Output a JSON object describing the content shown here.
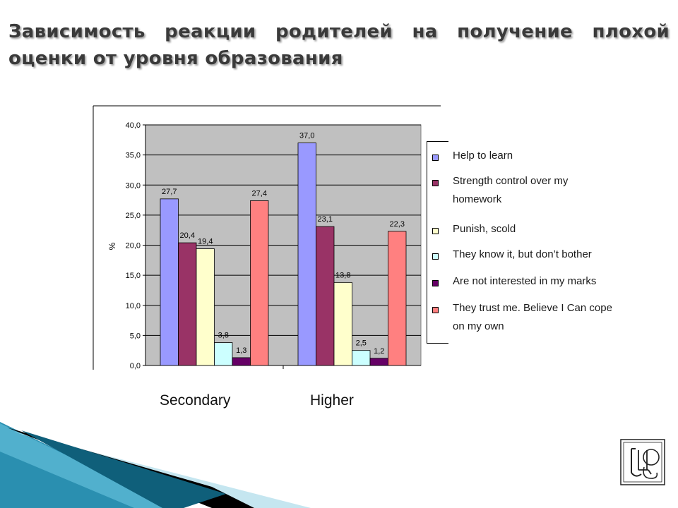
{
  "title": "Зависимость реакции родителей на получение плохой оценки от уровня образования",
  "chart_data": {
    "type": "bar",
    "categories": [
      "Secondary",
      "Higher"
    ],
    "ylabel": "%",
    "ylim": [
      0,
      40
    ],
    "yticks": [
      "0,0",
      "5,0",
      "10,0",
      "15,0",
      "20,0",
      "25,0",
      "30,0",
      "35,0",
      "40,0"
    ],
    "grid": true,
    "legend_position": "right",
    "series": [
      {
        "name": "Help to learn",
        "color": "#9999ff",
        "values": [
          27.7,
          37.0
        ],
        "labels": [
          "27,7",
          "37,0"
        ]
      },
      {
        "name": "Strength control over my homework",
        "color": "#993366",
        "values": [
          20.4,
          23.1
        ],
        "labels": [
          "20,4",
          "23,1"
        ]
      },
      {
        "name": "Punish, scold",
        "color": "#ffffcc",
        "values": [
          19.4,
          13.8
        ],
        "labels": [
          "19,4",
          "13,8"
        ]
      },
      {
        "name": "They know it, but don’t bother",
        "color": "#ccffff",
        "values": [
          3.8,
          2.5
        ],
        "labels": [
          "3,8",
          "2,5"
        ]
      },
      {
        "name": "Are not interested in my marks",
        "color": "#660066",
        "values": [
          1.3,
          1.2
        ],
        "labels": [
          "1,3",
          "1,2"
        ]
      },
      {
        "name": "They trust me. Believe I Can cope on my own",
        "color": "#ff8080",
        "values": [
          27.4,
          22.3
        ],
        "labels": [
          "27,4",
          "22,3"
        ]
      }
    ]
  },
  "legend": [
    {
      "label": "Help to learn",
      "lines": [
        "Help to learn"
      ]
    },
    {
      "label": "Strength control over my homework",
      "lines": [
        "Strength control over my",
        "homework"
      ]
    },
    {
      "label": "Punish, scold",
      "lines": [
        "Punish, scold"
      ]
    },
    {
      "label": "They know it, but don’t bother",
      "lines": [
        "They know it, but don’t bother"
      ]
    },
    {
      "label": "Are not interested in my marks",
      "lines": [
        "Are not interested in my marks"
      ]
    },
    {
      "label": "They trust me. Believe I Can cope on my own",
      "lines": [
        "They trust me. Believe I Can cope",
        "on my own"
      ]
    }
  ],
  "colors": {
    "plot_background": "#c0c0c0",
    "title_text": "#3a3a3a",
    "decoration_teal": "#2a8fb0"
  }
}
